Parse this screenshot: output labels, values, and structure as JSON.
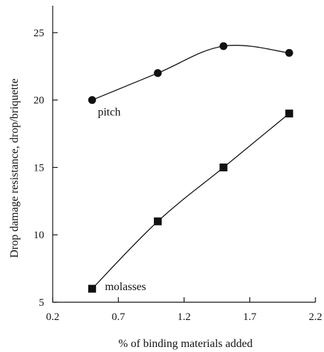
{
  "chart_data": {
    "type": "line",
    "title": "",
    "xlabel": "% of binding materials added",
    "ylabel": "Drop damage resistance, drop/briquette",
    "xlim": [
      0.2,
      2.2
    ],
    "ylim": [
      5,
      27
    ],
    "xticks": [
      0.2,
      0.7,
      1.2,
      1.7,
      2.2
    ],
    "xtick_labels": [
      "0.2",
      "0.7",
      "1.2",
      "1.7",
      "2.2"
    ],
    "yticks": [
      5,
      10,
      15,
      20,
      25
    ],
    "ytick_labels": [
      "5",
      "10",
      "15",
      "20",
      "25"
    ],
    "grid": false,
    "legend": "none",
    "series": [
      {
        "name": "pitch",
        "marker": "circle",
        "color": "#111111",
        "x": [
          0.5,
          1.0,
          1.5,
          2.0
        ],
        "y": [
          20,
          22,
          24,
          23.5
        ]
      },
      {
        "name": "molasses",
        "marker": "square",
        "color": "#111111",
        "x": [
          0.5,
          1.0,
          1.5,
          2.0
        ],
        "y": [
          6,
          11,
          15,
          19
        ]
      }
    ]
  }
}
